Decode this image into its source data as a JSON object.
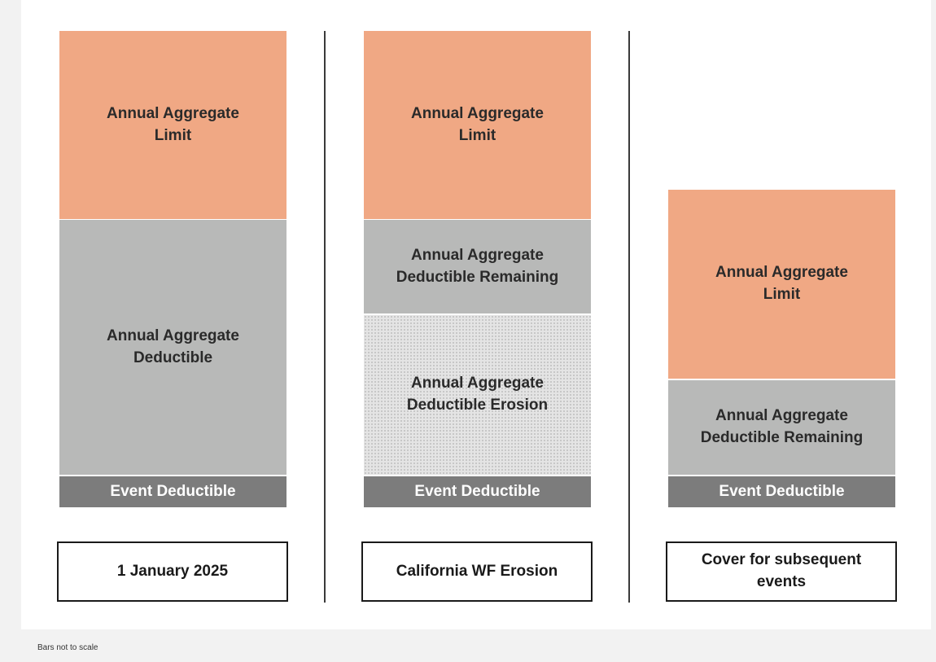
{
  "columns": [
    {
      "blocks": {
        "limit": "Annual Aggregate Limit",
        "deductible": "Annual Aggregate Deductible",
        "event": "Event Deductible"
      },
      "caption": "1 January 2025"
    },
    {
      "blocks": {
        "limit": "Annual Aggregate Limit",
        "remaining": "Annual Aggregate Deductible Remaining",
        "erosion": "Annual Aggregate Deductible Erosion",
        "event": "Event Deductible"
      },
      "caption": "California WF Erosion"
    },
    {
      "blocks": {
        "limit": "Annual Aggregate Limit",
        "remaining": "Annual Aggregate Deductible Remaining",
        "event": "Event Deductible"
      },
      "caption": "Cover for subsequent events"
    }
  ],
  "footnote": "Bars not to scale",
  "colors": {
    "limit": "#f0a884",
    "deductible": "#b8b9b8",
    "event": "#7c7c7c",
    "background": "#f2f2f2"
  }
}
